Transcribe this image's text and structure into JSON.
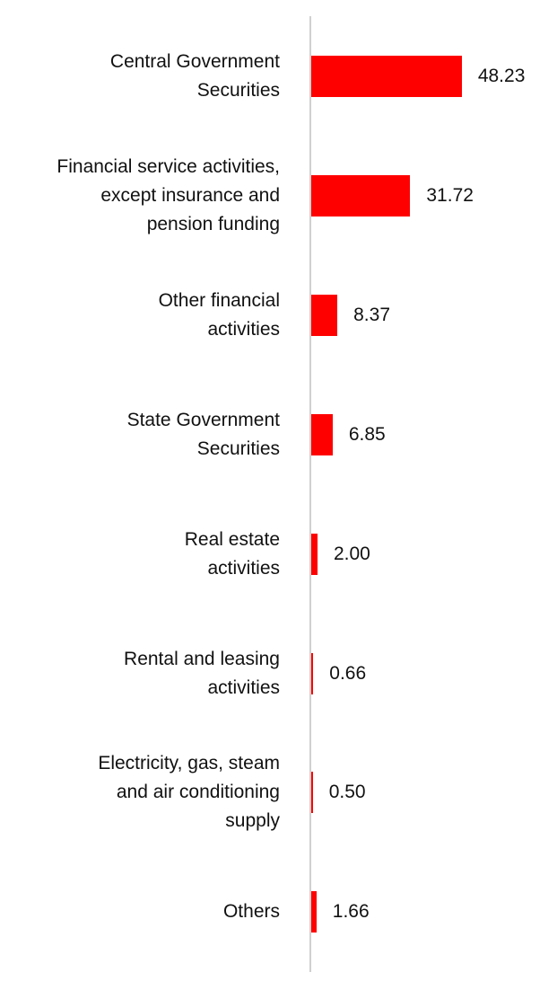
{
  "chart_data": {
    "type": "bar",
    "orientation": "horizontal",
    "color": "#ff0000",
    "categories": [
      "Central Government\nSecurities",
      "Financial service activities,\nexcept insurance and\npension funding",
      "Other financial\nactivities",
      "State Government\nSecurities",
      "Real estate\nactivities",
      "Rental and leasing\nactivities",
      "Electricity, gas, steam\nand air conditioning\nsupply",
      "Others"
    ],
    "values": [
      48.23,
      31.72,
      8.37,
      6.85,
      2.0,
      0.66,
      0.5,
      1.66
    ],
    "value_labels": [
      "48.23",
      "31.72",
      "8.37",
      "6.85",
      "2.00",
      "0.66",
      "0.50",
      "1.66"
    ]
  }
}
